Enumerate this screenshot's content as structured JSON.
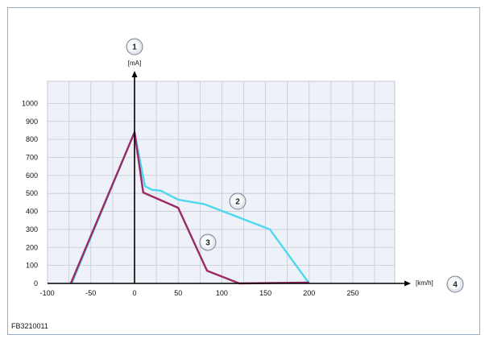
{
  "figure_id": "FB3210011",
  "colors": {
    "plot_background": "#eef1f8",
    "grid": "#c4c9d6",
    "axis": "#000000",
    "cyan_series": "#4dd8f0",
    "magenta_series": "#9b2a64"
  },
  "chart_data": {
    "type": "line",
    "x_unit": "[km/h]",
    "y_unit": "[mA]",
    "xlim": [
      -100,
      300
    ],
    "ylim": [
      0,
      1050
    ],
    "x_ticks": [
      "-100",
      "-50",
      "0",
      "50",
      "100",
      "150",
      "200",
      "250"
    ],
    "x_tick_values": [
      -100,
      -50,
      0,
      50,
      100,
      150,
      200,
      250
    ],
    "y_ticks": [
      "0",
      "100",
      "200",
      "300",
      "400",
      "500",
      "600",
      "700",
      "800",
      "900",
      "1000"
    ],
    "y_tick_values": [
      0,
      100,
      200,
      300,
      400,
      500,
      600,
      700,
      800,
      900,
      1000
    ],
    "grid": true,
    "callouts": [
      {
        "label": "1",
        "target": "y-axis"
      },
      {
        "label": "2",
        "target": "cyan-series"
      },
      {
        "label": "3",
        "target": "magenta-series"
      },
      {
        "label": "4",
        "target": "x-axis"
      }
    ],
    "series": [
      {
        "callout": "2",
        "color": "#4dd8f0",
        "x": [
          -72,
          0,
          12,
          20,
          30,
          50,
          80,
          155,
          200
        ],
        "y": [
          0,
          840,
          540,
          520,
          515,
          465,
          440,
          300,
          0
        ]
      },
      {
        "callout": "3",
        "color": "#9b2a64",
        "x": [
          -73,
          0,
          10,
          50,
          83,
          120,
          200
        ],
        "y": [
          0,
          840,
          505,
          420,
          70,
          0,
          5
        ]
      }
    ]
  }
}
